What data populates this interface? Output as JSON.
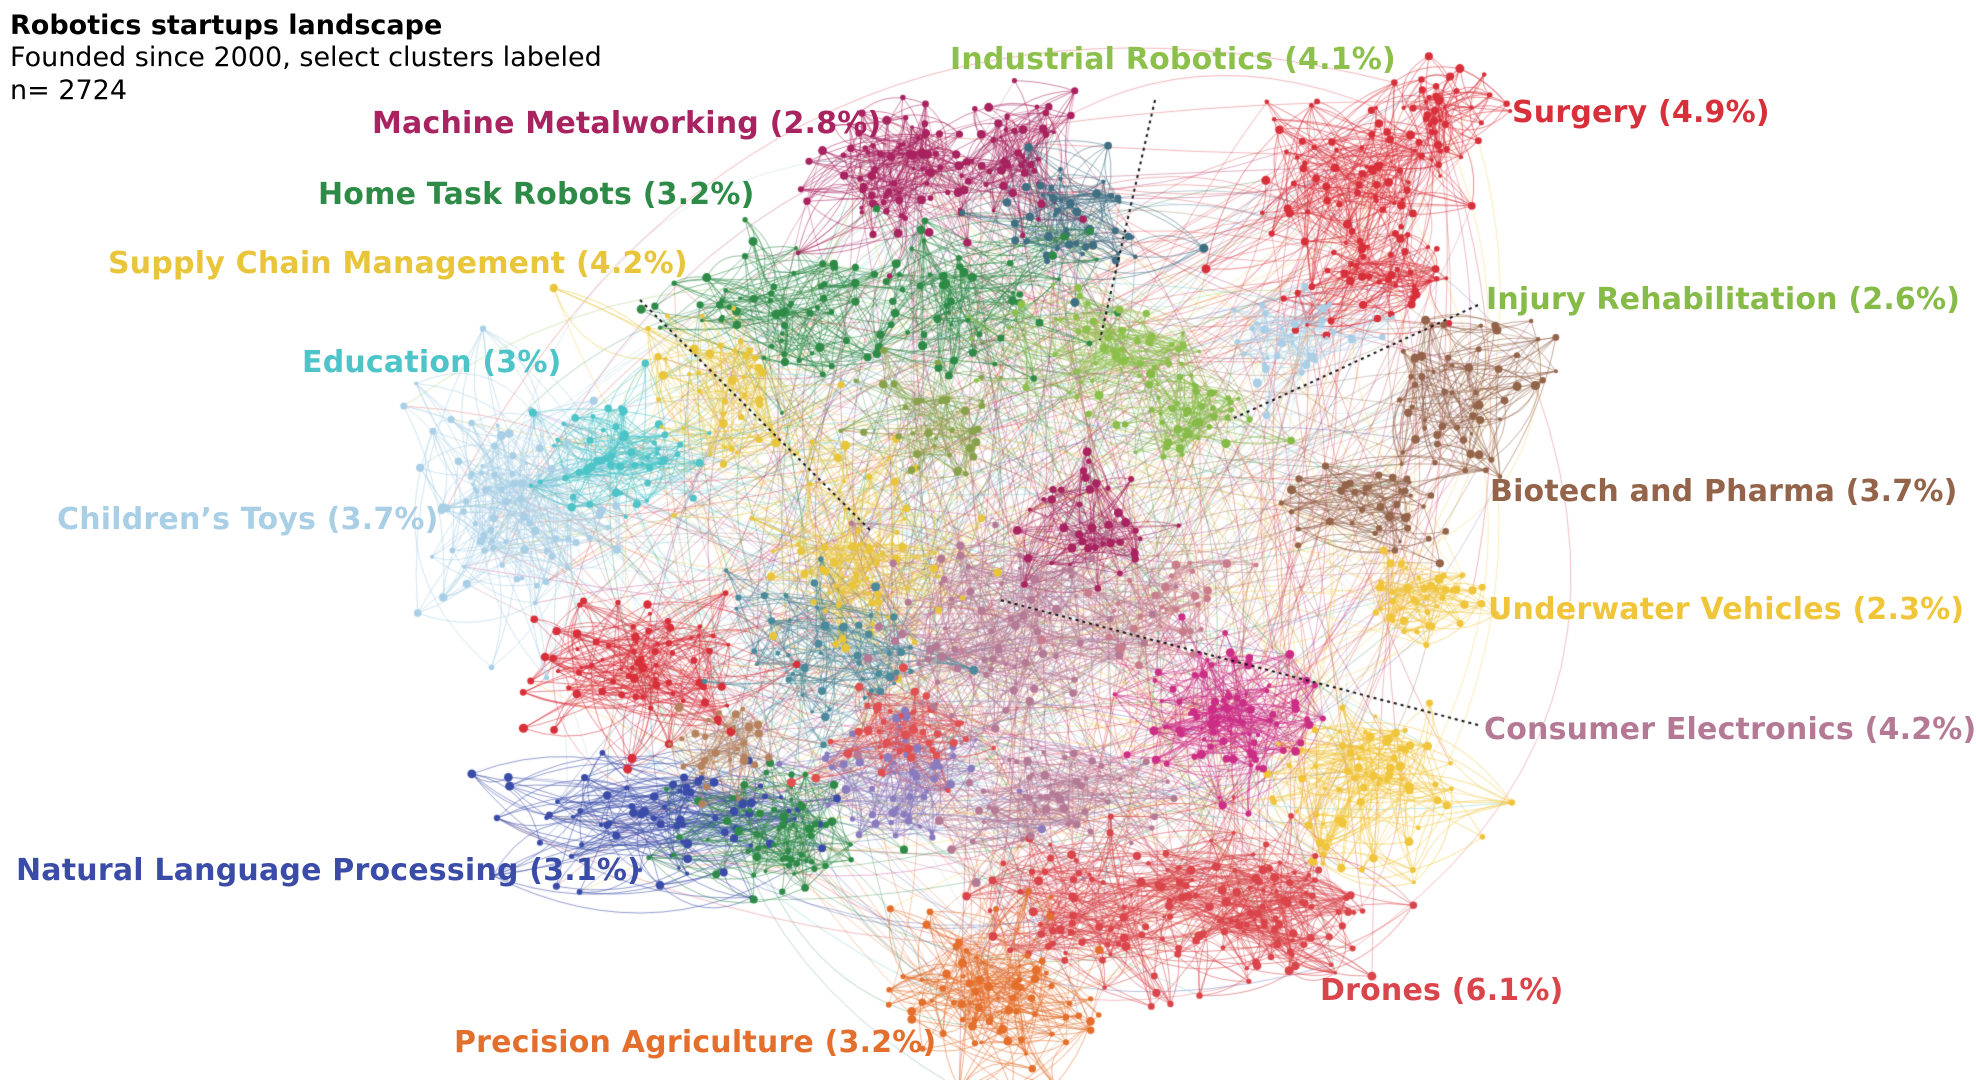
{
  "title": {
    "main": "Robotics startups landscape",
    "subtitle": "Founded since 2000, select clusters labeled",
    "n_label": "n= 2724"
  },
  "clusters": [
    {
      "key": "industrial",
      "text": "Industrial Robotics (4.1%)",
      "color": "#8dc04a"
    },
    {
      "key": "machine",
      "text": "Machine Metalworking (2.8%)",
      "color": "#a8235f"
    },
    {
      "key": "home",
      "text": "Home Task Robots (3.2%)",
      "color": "#2e8b47"
    },
    {
      "key": "supply",
      "text": "Supply Chain Management (4.2%)",
      "color": "#e8c53a"
    },
    {
      "key": "education",
      "text": "Education (3%)",
      "color": "#4cc4c8"
    },
    {
      "key": "toys",
      "text": "Children’s Toys (3.7%)",
      "color": "#a9cfe6"
    },
    {
      "key": "surgery",
      "text": "Surgery (4.9%)",
      "color": "#d8303a"
    },
    {
      "key": "injury",
      "text": "Injury Rehabilitation (2.6%)",
      "color": "#86bb47"
    },
    {
      "key": "biotech",
      "text": "Biotech and Pharma (3.7%)",
      "color": "#93634a"
    },
    {
      "key": "underwater",
      "text": "Underwater Vehicles (2.3%)",
      "color": "#f0c53a"
    },
    {
      "key": "consumer",
      "text": "Consumer Electronics (4.2%)",
      "color": "#b47a95"
    },
    {
      "key": "nlp",
      "text": "Natural Language Processing (3.1%)",
      "color": "#3a4ca8"
    },
    {
      "key": "drones",
      "text": "Drones (6.1%)",
      "color": "#d9454a"
    },
    {
      "key": "agriculture",
      "text": "Precision Agriculture (3.2%)",
      "color": "#e46f2c"
    }
  ]
}
